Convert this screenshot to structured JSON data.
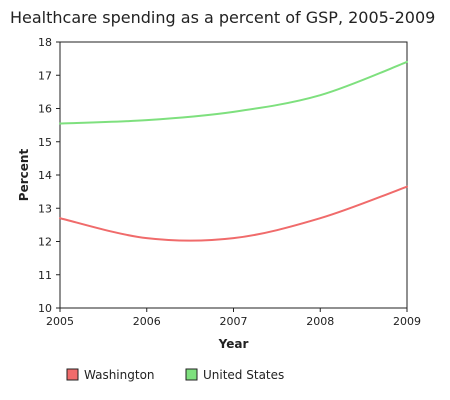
{
  "chart_data": {
    "type": "line",
    "title": "Healthcare spending as a percent of GSP, 2005-2009",
    "xlabel": "Year",
    "ylabel": "Percent",
    "x": [
      2005,
      2006,
      2007,
      2008,
      2009
    ],
    "xlim": [
      2005,
      2009
    ],
    "ylim": [
      10,
      18
    ],
    "yticks": [
      10,
      11,
      12,
      13,
      14,
      15,
      16,
      17,
      18
    ],
    "grid": false,
    "legend_position": "bottom",
    "series": [
      {
        "name": "Washington",
        "color": "#f06b6b",
        "values": [
          12.7,
          12.1,
          12.1,
          12.7,
          13.65
        ]
      },
      {
        "name": "United States",
        "color": "#7ee07e",
        "values": [
          15.55,
          15.65,
          15.9,
          16.4,
          17.4
        ]
      }
    ]
  }
}
